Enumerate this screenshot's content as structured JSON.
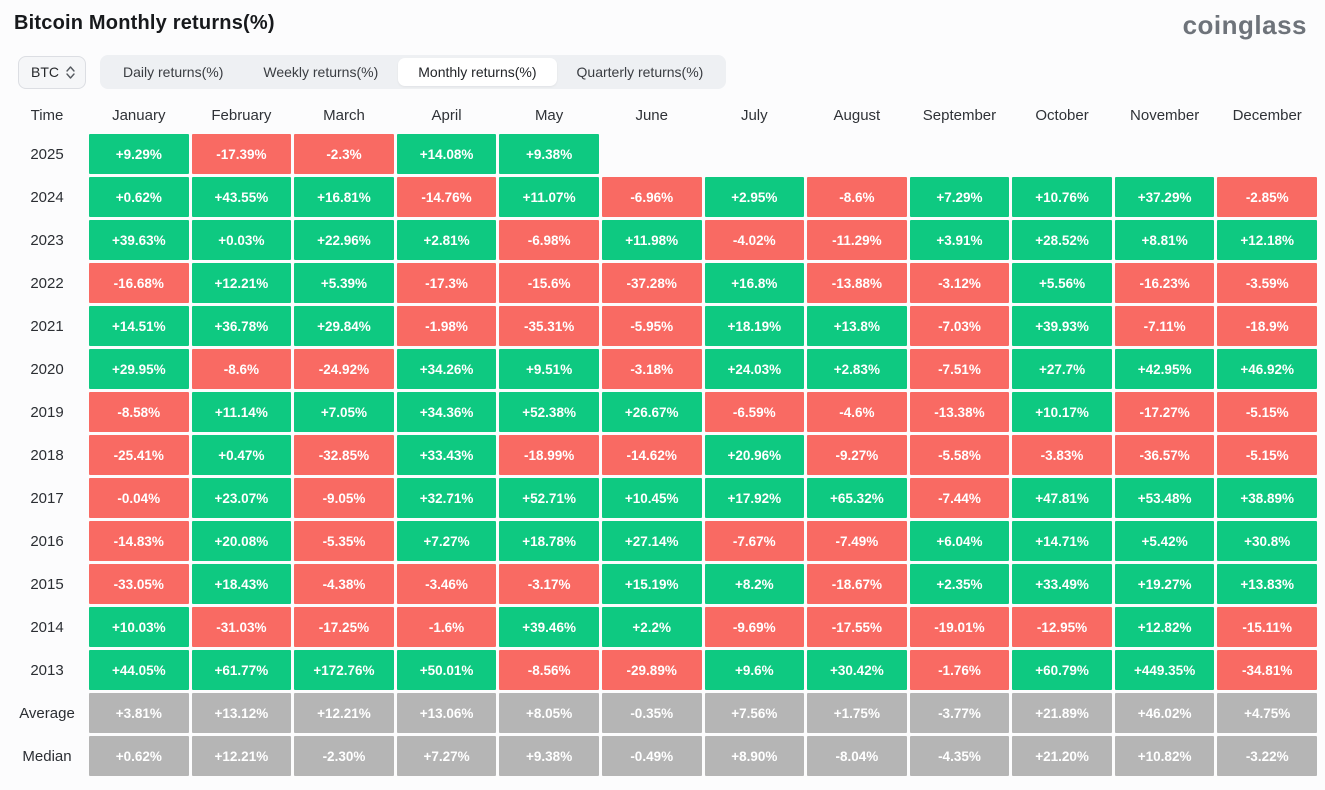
{
  "header": {
    "title": "Bitcoin Monthly returns(%)",
    "logo": "coinglass"
  },
  "controls": {
    "symbol": "BTC",
    "symbol_icon": "updown-chevron-icon",
    "tabs": [
      {
        "label": "Daily returns(%)",
        "active": false
      },
      {
        "label": "Weekly returns(%)",
        "active": false
      },
      {
        "label": "Monthly returns(%)",
        "active": true
      },
      {
        "label": "Quarterly returns(%)",
        "active": false
      }
    ]
  },
  "colors": {
    "positive": "#0ec981",
    "negative": "#f96a63",
    "summary": "#b5b5b5"
  },
  "chart_data": {
    "type": "heatmap",
    "title": "Bitcoin Monthly returns(%)",
    "time_label": "Time",
    "months": [
      "January",
      "February",
      "March",
      "April",
      "May",
      "June",
      "July",
      "August",
      "September",
      "October",
      "November",
      "December"
    ],
    "rows": [
      {
        "label": "2025",
        "summary": false,
        "values": [
          "+9.29%",
          "-17.39%",
          "-2.3%",
          "+14.08%",
          "+9.38%",
          "",
          "",
          "",
          "",
          "",
          "",
          ""
        ]
      },
      {
        "label": "2024",
        "summary": false,
        "values": [
          "+0.62%",
          "+43.55%",
          "+16.81%",
          "-14.76%",
          "+11.07%",
          "-6.96%",
          "+2.95%",
          "-8.6%",
          "+7.29%",
          "+10.76%",
          "+37.29%",
          "-2.85%"
        ]
      },
      {
        "label": "2023",
        "summary": false,
        "values": [
          "+39.63%",
          "+0.03%",
          "+22.96%",
          "+2.81%",
          "-6.98%",
          "+11.98%",
          "-4.02%",
          "-11.29%",
          "+3.91%",
          "+28.52%",
          "+8.81%",
          "+12.18%"
        ]
      },
      {
        "label": "2022",
        "summary": false,
        "values": [
          "-16.68%",
          "+12.21%",
          "+5.39%",
          "-17.3%",
          "-15.6%",
          "-37.28%",
          "+16.8%",
          "-13.88%",
          "-3.12%",
          "+5.56%",
          "-16.23%",
          "-3.59%"
        ]
      },
      {
        "label": "2021",
        "summary": false,
        "values": [
          "+14.51%",
          "+36.78%",
          "+29.84%",
          "-1.98%",
          "-35.31%",
          "-5.95%",
          "+18.19%",
          "+13.8%",
          "-7.03%",
          "+39.93%",
          "-7.11%",
          "-18.9%"
        ]
      },
      {
        "label": "2020",
        "summary": false,
        "values": [
          "+29.95%",
          "-8.6%",
          "-24.92%",
          "+34.26%",
          "+9.51%",
          "-3.18%",
          "+24.03%",
          "+2.83%",
          "-7.51%",
          "+27.7%",
          "+42.95%",
          "+46.92%"
        ]
      },
      {
        "label": "2019",
        "summary": false,
        "values": [
          "-8.58%",
          "+11.14%",
          "+7.05%",
          "+34.36%",
          "+52.38%",
          "+26.67%",
          "-6.59%",
          "-4.6%",
          "-13.38%",
          "+10.17%",
          "-17.27%",
          "-5.15%"
        ]
      },
      {
        "label": "2018",
        "summary": false,
        "values": [
          "-25.41%",
          "+0.47%",
          "-32.85%",
          "+33.43%",
          "-18.99%",
          "-14.62%",
          "+20.96%",
          "-9.27%",
          "-5.58%",
          "-3.83%",
          "-36.57%",
          "-5.15%"
        ]
      },
      {
        "label": "2017",
        "summary": false,
        "values": [
          "-0.04%",
          "+23.07%",
          "-9.05%",
          "+32.71%",
          "+52.71%",
          "+10.45%",
          "+17.92%",
          "+65.32%",
          "-7.44%",
          "+47.81%",
          "+53.48%",
          "+38.89%"
        ]
      },
      {
        "label": "2016",
        "summary": false,
        "values": [
          "-14.83%",
          "+20.08%",
          "-5.35%",
          "+7.27%",
          "+18.78%",
          "+27.14%",
          "-7.67%",
          "-7.49%",
          "+6.04%",
          "+14.71%",
          "+5.42%",
          "+30.8%"
        ]
      },
      {
        "label": "2015",
        "summary": false,
        "values": [
          "-33.05%",
          "+18.43%",
          "-4.38%",
          "-3.46%",
          "-3.17%",
          "+15.19%",
          "+8.2%",
          "-18.67%",
          "+2.35%",
          "+33.49%",
          "+19.27%",
          "+13.83%"
        ]
      },
      {
        "label": "2014",
        "summary": false,
        "values": [
          "+10.03%",
          "-31.03%",
          "-17.25%",
          "-1.6%",
          "+39.46%",
          "+2.2%",
          "-9.69%",
          "-17.55%",
          "-19.01%",
          "-12.95%",
          "+12.82%",
          "-15.11%"
        ]
      },
      {
        "label": "2013",
        "summary": false,
        "values": [
          "+44.05%",
          "+61.77%",
          "+172.76%",
          "+50.01%",
          "-8.56%",
          "-29.89%",
          "+9.6%",
          "+30.42%",
          "-1.76%",
          "+60.79%",
          "+449.35%",
          "-34.81%"
        ]
      },
      {
        "label": "Average",
        "summary": true,
        "values": [
          "+3.81%",
          "+13.12%",
          "+12.21%",
          "+13.06%",
          "+8.05%",
          "-0.35%",
          "+7.56%",
          "+1.75%",
          "-3.77%",
          "+21.89%",
          "+46.02%",
          "+4.75%"
        ]
      },
      {
        "label": "Median",
        "summary": true,
        "values": [
          "+0.62%",
          "+12.21%",
          "-2.30%",
          "+7.27%",
          "+9.38%",
          "-0.49%",
          "+8.90%",
          "-8.04%",
          "-4.35%",
          "+21.20%",
          "+10.82%",
          "-3.22%"
        ]
      }
    ]
  }
}
